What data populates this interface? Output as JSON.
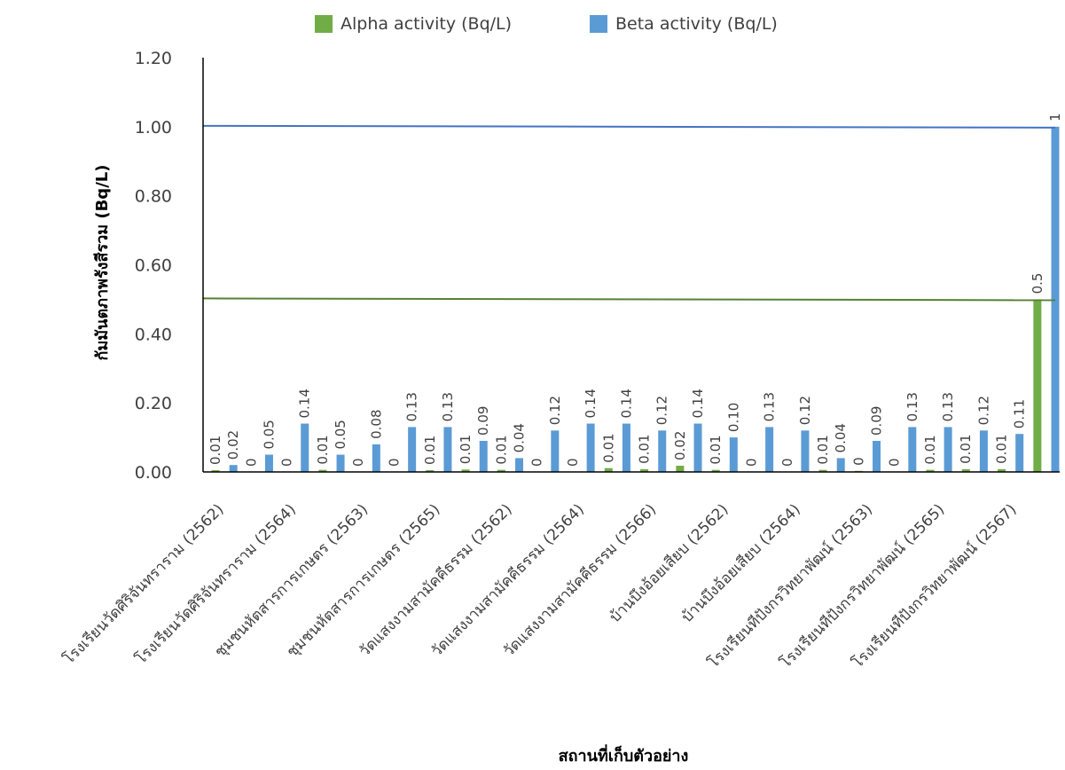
{
  "chart_data": {
    "type": "bar",
    "xlabel": "สถานที่เก็บตัวอย่าง",
    "ylabel": "กัมมันตภาพรังสีรวม (Bq/L)",
    "ylim": [
      0,
      1.2
    ],
    "yticks": [
      "0.00",
      "0.20",
      "0.40",
      "0.60",
      "0.80",
      "1.00",
      "1.20"
    ],
    "grid": false,
    "legend_position": "top",
    "categories": [
      "โรงเรียนวัดศิริจันทราราม (2562)",
      "โรงเรียนวัดศิริจันทราราม (2564)",
      "ชุมชนหัตสารการเกษตร (2563)",
      "ชุมชนหัตสารการเกษตร (2565)",
      "วัดแสงงามสามัคคีธรรม (2562)",
      "วัดแสงงามสามัคคีธรรม (2564)",
      "วัดแสงงามสามัคคีธรรม (2566)",
      "บ้านบึงอ้อยเสียบ (2562)",
      "บ้านบึงอ้อยเสียบ (2564)",
      "โรงเรียนทีปังกรวิทยาพัฒน์ (2563)",
      "โรงเรียนทีปังกรวิทยาพัฒน์ (2565)",
      "โรงเรียนทีปังกรวิทยาพัฒน์ (2567)"
    ],
    "bars": [
      {
        "series": "alpha",
        "value": 0.005,
        "label": "0.01"
      },
      {
        "series": "beta",
        "value": 0.02,
        "label": "0.02"
      },
      {
        "series": "alpha",
        "value": 0,
        "label": "0"
      },
      {
        "series": "beta",
        "value": 0.05,
        "label": "0.05"
      },
      {
        "series": "alpha",
        "value": 0,
        "label": "0"
      },
      {
        "series": "beta",
        "value": 0.14,
        "label": "0.14"
      },
      {
        "series": "alpha",
        "value": 0.006,
        "label": "0.01"
      },
      {
        "series": "beta",
        "value": 0.05,
        "label": "0.05"
      },
      {
        "series": "alpha",
        "value": 0,
        "label": "0"
      },
      {
        "series": "beta",
        "value": 0.08,
        "label": "0.08"
      },
      {
        "series": "alpha",
        "value": 0,
        "label": "0"
      },
      {
        "series": "beta",
        "value": 0.13,
        "label": "0.13"
      },
      {
        "series": "alpha",
        "value": 0.005,
        "label": "0.01"
      },
      {
        "series": "beta",
        "value": 0.13,
        "label": "0.13"
      },
      {
        "series": "alpha",
        "value": 0.007,
        "label": "0.01"
      },
      {
        "series": "beta",
        "value": 0.09,
        "label": "0.09"
      },
      {
        "series": "alpha",
        "value": 0.006,
        "label": "0.01"
      },
      {
        "series": "beta",
        "value": 0.04,
        "label": "0.04"
      },
      {
        "series": "alpha",
        "value": 0,
        "label": "0"
      },
      {
        "series": "beta",
        "value": 0.12,
        "label": "0.12"
      },
      {
        "series": "alpha",
        "value": 0,
        "label": "0"
      },
      {
        "series": "beta",
        "value": 0.14,
        "label": "0.14"
      },
      {
        "series": "alpha",
        "value": 0.011,
        "label": "0.01"
      },
      {
        "series": "beta",
        "value": 0.14,
        "label": "0.14"
      },
      {
        "series": "alpha",
        "value": 0.008,
        "label": "0.01"
      },
      {
        "series": "beta",
        "value": 0.12,
        "label": "0.12"
      },
      {
        "series": "alpha",
        "value": 0.018,
        "label": "0.02"
      },
      {
        "series": "beta",
        "value": 0.14,
        "label": "0.14"
      },
      {
        "series": "alpha",
        "value": 0.006,
        "label": "0.01"
      },
      {
        "series": "beta",
        "value": 0.1,
        "label": "0.10"
      },
      {
        "series": "alpha",
        "value": 0,
        "label": "0"
      },
      {
        "series": "beta",
        "value": 0.13,
        "label": "0.13"
      },
      {
        "series": "alpha",
        "value": 0,
        "label": "0"
      },
      {
        "series": "beta",
        "value": 0.12,
        "label": "0.12"
      },
      {
        "series": "alpha",
        "value": 0.006,
        "label": "0.01"
      },
      {
        "series": "beta",
        "value": 0.04,
        "label": "0.04"
      },
      {
        "series": "alpha",
        "value": 0.003,
        "label": "0"
      },
      {
        "series": "beta",
        "value": 0.09,
        "label": "0.09"
      },
      {
        "series": "alpha",
        "value": 0,
        "label": "0"
      },
      {
        "series": "beta",
        "value": 0.13,
        "label": "0.13"
      },
      {
        "series": "alpha",
        "value": 0.006,
        "label": "0.01"
      },
      {
        "series": "beta",
        "value": 0.13,
        "label": "0.13"
      },
      {
        "series": "alpha",
        "value": 0.008,
        "label": "0.01"
      },
      {
        "series": "beta",
        "value": 0.12,
        "label": "0.12"
      },
      {
        "series": "alpha",
        "value": 0.008,
        "label": "0.01"
      },
      {
        "series": "beta",
        "value": 0.11,
        "label": "0.11"
      },
      {
        "series": "alpha",
        "value": 0.5,
        "label": "0.5"
      },
      {
        "series": "beta",
        "value": 1.0,
        "label": "1"
      }
    ],
    "series": [
      {
        "key": "alpha",
        "name": "Alpha activity (Bq/L)",
        "color": "#70ad47"
      },
      {
        "key": "beta",
        "name": "Beta activity (Bq/L)",
        "color": "#5b9bd5"
      }
    ],
    "reference_lines": [
      {
        "series": "alpha",
        "value": 0.5,
        "color": "#548235"
      },
      {
        "series": "beta",
        "value": 1.0,
        "color": "#4472c4"
      }
    ]
  }
}
